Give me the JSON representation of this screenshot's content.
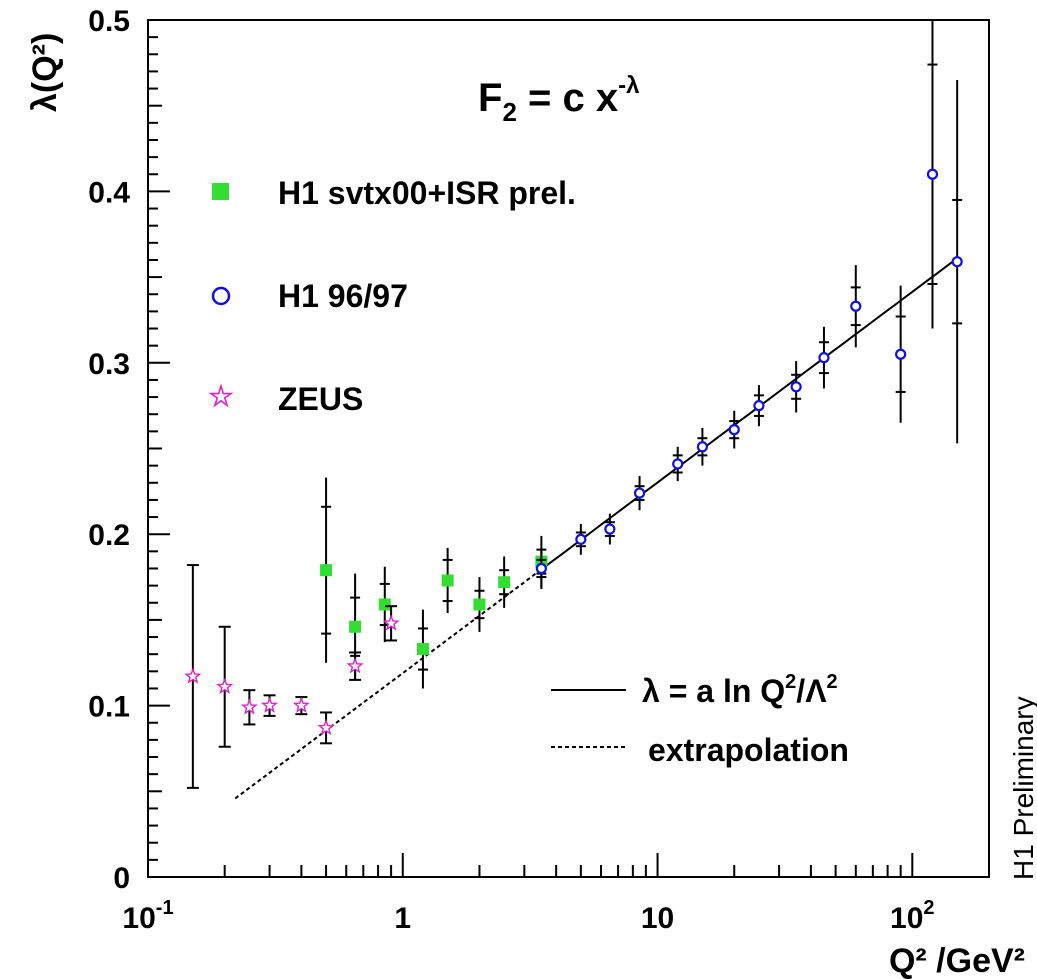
{
  "chart_data": {
    "type": "scatter",
    "title": "",
    "xlabel": "Q² /GeV²",
    "ylabel": "λ(Q²)",
    "x_scale": "log",
    "xlim": [
      0.1,
      200
    ],
    "ylim": [
      0,
      0.5
    ],
    "y_ticks": [
      "0",
      "0.1",
      "0.2",
      "0.3",
      "0.4",
      "0.5"
    ],
    "x_ticks": [
      {
        "value": 0.1,
        "base": "10",
        "exp": "-1"
      },
      {
        "value": 1,
        "base": "1",
        "exp": ""
      },
      {
        "value": 10,
        "base": "10",
        "exp": ""
      },
      {
        "value": 100,
        "base": "10",
        "exp": "2"
      }
    ],
    "formula": {
      "main": "F",
      "sub": "2",
      "rest": " = c x",
      "sup": "-λ"
    },
    "side_label": "H1 Preliminary",
    "legend": [
      {
        "name": "H1 svtx00+ISR prel.",
        "marker": "filled-square",
        "color": "#33dd33"
      },
      {
        "name": "H1 96/97",
        "marker": "open-circle",
        "color": "#1010e0"
      },
      {
        "name": "ZEUS",
        "marker": "open-star",
        "color": "#dd22cc"
      }
    ],
    "line_legend": [
      {
        "label_main": "λ = a ln Q",
        "label_sup1": "2",
        "label_mid": "/Λ",
        "label_sup2": "2",
        "style": "solid"
      },
      {
        "label_main": "extrapolation",
        "style": "dashed"
      }
    ],
    "fit": {
      "a": 0.0483,
      "Lambda2": 0.0852,
      "solid_from": 3.5,
      "solid_to": 150,
      "dashed_from": 0.22,
      "dashed_to": 3.5
    },
    "series": [
      {
        "name": "H1 svtx00+ISR prel.",
        "points": [
          {
            "x": 0.5,
            "y": 0.179,
            "err_in": 0.037,
            "err_tot": 0.054
          },
          {
            "x": 0.65,
            "y": 0.146,
            "err_in": 0.017,
            "err_tot": 0.031
          },
          {
            "x": 0.85,
            "y": 0.159,
            "err_in": 0.012,
            "err_tot": 0.022
          },
          {
            "x": 1.2,
            "y": 0.133,
            "err_in": 0.012,
            "err_tot": 0.023
          },
          {
            "x": 1.5,
            "y": 0.173,
            "err_in": 0.012,
            "err_tot": 0.019
          },
          {
            "x": 2.0,
            "y": 0.159,
            "err_in": 0.008,
            "err_tot": 0.016
          },
          {
            "x": 2.5,
            "y": 0.172,
            "err_in": 0.007,
            "err_tot": 0.015
          },
          {
            "x": 3.5,
            "y": 0.184,
            "err_in": 0.007,
            "err_tot": 0.015
          }
        ]
      },
      {
        "name": "H1 96/97",
        "points": [
          {
            "x": 3.5,
            "y": 0.18,
            "err_in": 0.005,
            "err_tot": 0.012
          },
          {
            "x": 5.0,
            "y": 0.197,
            "err_in": 0.004,
            "err_tot": 0.009
          },
          {
            "x": 6.5,
            "y": 0.203,
            "err_in": 0.004,
            "err_tot": 0.009
          },
          {
            "x": 8.5,
            "y": 0.224,
            "err_in": 0.004,
            "err_tot": 0.01
          },
          {
            "x": 12,
            "y": 0.241,
            "err_in": 0.005,
            "err_tot": 0.01
          },
          {
            "x": 15,
            "y": 0.251,
            "err_in": 0.005,
            "err_tot": 0.011
          },
          {
            "x": 20,
            "y": 0.261,
            "err_in": 0.005,
            "err_tot": 0.011
          },
          {
            "x": 25,
            "y": 0.275,
            "err_in": 0.006,
            "err_tot": 0.012
          },
          {
            "x": 35,
            "y": 0.286,
            "err_in": 0.007,
            "err_tot": 0.015
          },
          {
            "x": 45,
            "y": 0.303,
            "err_in": 0.009,
            "err_tot": 0.018
          },
          {
            "x": 60,
            "y": 0.333,
            "err_in": 0.011,
            "err_tot": 0.024
          },
          {
            "x": 90,
            "y": 0.305,
            "err_in": 0.022,
            "err_tot": 0.04
          },
          {
            "x": 120,
            "y": 0.41,
            "err_in": 0.064,
            "err_tot": 0.09
          },
          {
            "x": 150,
            "y": 0.359,
            "err_in": 0.036,
            "err_tot": 0.106
          }
        ]
      },
      {
        "name": "ZEUS",
        "points": [
          {
            "x": 0.15,
            "y": 0.117,
            "err_in": 0.065,
            "err_tot": 0.065
          },
          {
            "x": 0.2,
            "y": 0.111,
            "err_in": 0.035,
            "err_tot": 0.035
          },
          {
            "x": 0.25,
            "y": 0.099,
            "err_in": 0.01,
            "err_tot": 0.01
          },
          {
            "x": 0.3,
            "y": 0.1,
            "err_in": 0.006,
            "err_tot": 0.006
          },
          {
            "x": 0.4,
            "y": 0.1,
            "err_in": 0.005,
            "err_tot": 0.005
          },
          {
            "x": 0.5,
            "y": 0.087,
            "err_in": 0.009,
            "err_tot": 0.009
          },
          {
            "x": 0.65,
            "y": 0.123,
            "err_in": 0.008,
            "err_tot": 0.008
          },
          {
            "x": 0.9,
            "y": 0.148,
            "err_in": 0.01,
            "err_tot": 0.01
          }
        ]
      }
    ]
  }
}
